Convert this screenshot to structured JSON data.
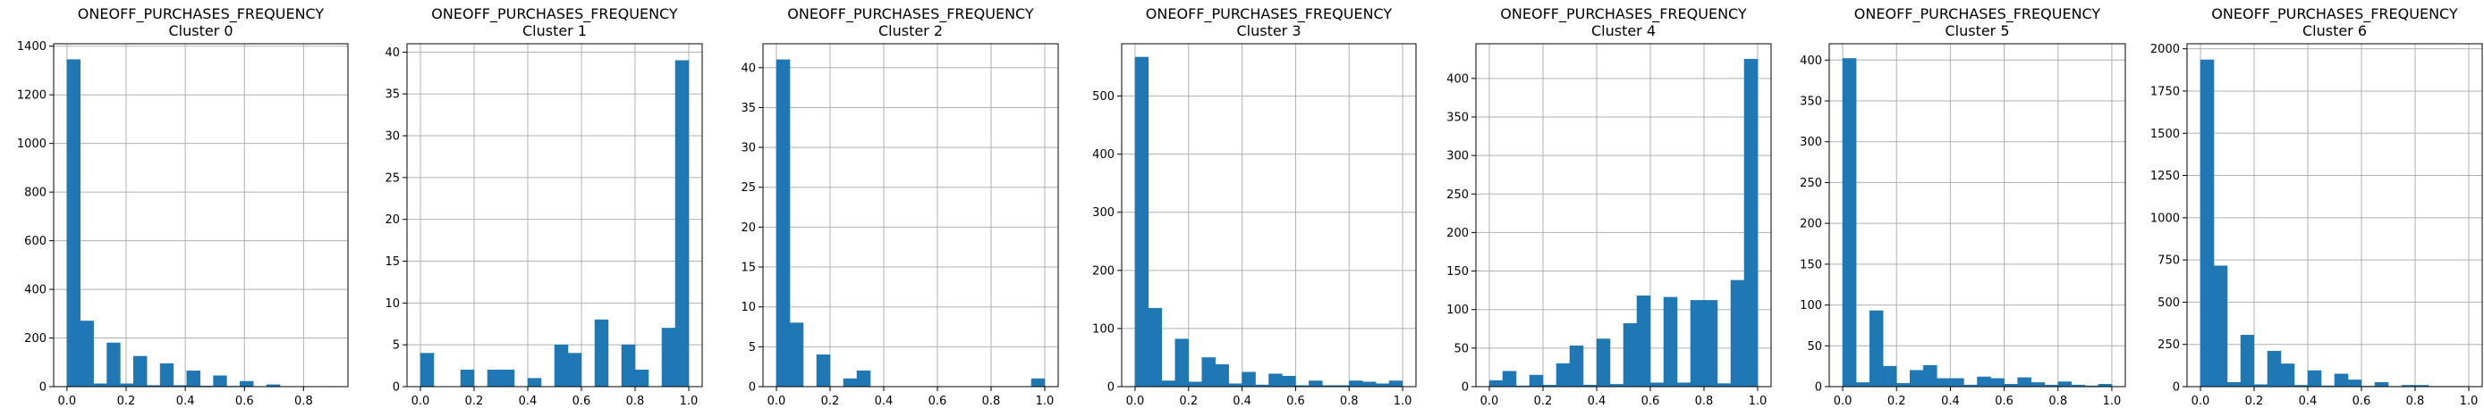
{
  "chart_data": [
    {
      "type": "bar",
      "title": "ONEOFF_PURCHASES_FREQUENCY",
      "subtitle": "Cluster 0",
      "xlim": [
        -0.045,
        0.95
      ],
      "ylim": [
        0,
        1410
      ],
      "xticks": [
        0.0,
        0.2,
        0.4,
        0.6,
        0.8
      ],
      "yticks": [
        0,
        200,
        400,
        600,
        800,
        1000,
        1200,
        1400
      ],
      "bin_width": 0.045,
      "grid": true,
      "color": "#1f77b4",
      "bins": [
        {
          "x0": 0.0,
          "x1": 0.045,
          "value": 1345
        },
        {
          "x0": 0.045,
          "x1": 0.09,
          "value": 270
        },
        {
          "x0": 0.09,
          "x1": 0.135,
          "value": 12
        },
        {
          "x0": 0.135,
          "x1": 0.18,
          "value": 180
        },
        {
          "x0": 0.18,
          "x1": 0.225,
          "value": 12
        },
        {
          "x0": 0.225,
          "x1": 0.27,
          "value": 125
        },
        {
          "x0": 0.27,
          "x1": 0.315,
          "value": 5
        },
        {
          "x0": 0.315,
          "x1": 0.36,
          "value": 95
        },
        {
          "x0": 0.36,
          "x1": 0.405,
          "value": 5
        },
        {
          "x0": 0.405,
          "x1": 0.45,
          "value": 65
        },
        {
          "x0": 0.45,
          "x1": 0.495,
          "value": 3
        },
        {
          "x0": 0.495,
          "x1": 0.54,
          "value": 45
        },
        {
          "x0": 0.54,
          "x1": 0.585,
          "value": 2
        },
        {
          "x0": 0.585,
          "x1": 0.63,
          "value": 22
        },
        {
          "x0": 0.63,
          "x1": 0.675,
          "value": 1
        },
        {
          "x0": 0.675,
          "x1": 0.72,
          "value": 8
        },
        {
          "x0": 0.72,
          "x1": 0.765,
          "value": 1
        },
        {
          "x0": 0.765,
          "x1": 0.81,
          "value": 1
        },
        {
          "x0": 0.81,
          "x1": 0.855,
          "value": 0
        },
        {
          "x0": 0.855,
          "x1": 0.9,
          "value": 1
        }
      ]
    },
    {
      "type": "bar",
      "title": "ONEOFF_PURCHASES_FREQUENCY",
      "subtitle": "Cluster 1",
      "xlim": [
        -0.05,
        1.05
      ],
      "ylim": [
        0,
        41
      ],
      "xticks": [
        0.0,
        0.2,
        0.4,
        0.6,
        0.8,
        1.0
      ],
      "yticks": [
        0,
        5,
        10,
        15,
        20,
        25,
        30,
        35,
        40
      ],
      "bin_width": 0.05,
      "grid": true,
      "color": "#1f77b4",
      "bins": [
        {
          "x0": 0.0,
          "x1": 0.05,
          "value": 4
        },
        {
          "x0": 0.05,
          "x1": 0.1,
          "value": 0
        },
        {
          "x0": 0.1,
          "x1": 0.15,
          "value": 0
        },
        {
          "x0": 0.15,
          "x1": 0.2,
          "value": 2
        },
        {
          "x0": 0.2,
          "x1": 0.25,
          "value": 0
        },
        {
          "x0": 0.25,
          "x1": 0.3,
          "value": 2
        },
        {
          "x0": 0.3,
          "x1": 0.35,
          "value": 2
        },
        {
          "x0": 0.35,
          "x1": 0.4,
          "value": 0
        },
        {
          "x0": 0.4,
          "x1": 0.45,
          "value": 1
        },
        {
          "x0": 0.45,
          "x1": 0.5,
          "value": 0
        },
        {
          "x0": 0.5,
          "x1": 0.55,
          "value": 5
        },
        {
          "x0": 0.55,
          "x1": 0.6,
          "value": 4
        },
        {
          "x0": 0.6,
          "x1": 0.65,
          "value": 0
        },
        {
          "x0": 0.65,
          "x1": 0.7,
          "value": 8
        },
        {
          "x0": 0.7,
          "x1": 0.75,
          "value": 0
        },
        {
          "x0": 0.75,
          "x1": 0.8,
          "value": 5
        },
        {
          "x0": 0.8,
          "x1": 0.85,
          "value": 2
        },
        {
          "x0": 0.85,
          "x1": 0.9,
          "value": 0
        },
        {
          "x0": 0.9,
          "x1": 0.95,
          "value": 7
        },
        {
          "x0": 0.95,
          "x1": 1.0,
          "value": 39
        }
      ]
    },
    {
      "type": "bar",
      "title": "ONEOFF_PURCHASES_FREQUENCY",
      "subtitle": "Cluster 2",
      "xlim": [
        -0.05,
        1.05
      ],
      "ylim": [
        0,
        43
      ],
      "xticks": [
        0.0,
        0.2,
        0.4,
        0.6,
        0.8,
        1.0
      ],
      "yticks": [
        0,
        5,
        10,
        15,
        20,
        25,
        30,
        35,
        40
      ],
      "bin_width": 0.05,
      "grid": true,
      "color": "#1f77b4",
      "bins": [
        {
          "x0": 0.0,
          "x1": 0.05,
          "value": 41
        },
        {
          "x0": 0.05,
          "x1": 0.1,
          "value": 8
        },
        {
          "x0": 0.1,
          "x1": 0.15,
          "value": 0
        },
        {
          "x0": 0.15,
          "x1": 0.2,
          "value": 4
        },
        {
          "x0": 0.2,
          "x1": 0.25,
          "value": 0
        },
        {
          "x0": 0.25,
          "x1": 0.3,
          "value": 1
        },
        {
          "x0": 0.3,
          "x1": 0.35,
          "value": 2
        },
        {
          "x0": 0.35,
          "x1": 0.4,
          "value": 0
        },
        {
          "x0": 0.4,
          "x1": 0.45,
          "value": 0
        },
        {
          "x0": 0.45,
          "x1": 0.5,
          "value": 0
        },
        {
          "x0": 0.5,
          "x1": 0.55,
          "value": 0
        },
        {
          "x0": 0.55,
          "x1": 0.6,
          "value": 0
        },
        {
          "x0": 0.6,
          "x1": 0.65,
          "value": 0
        },
        {
          "x0": 0.65,
          "x1": 0.7,
          "value": 0
        },
        {
          "x0": 0.7,
          "x1": 0.75,
          "value": 0
        },
        {
          "x0": 0.75,
          "x1": 0.8,
          "value": 0
        },
        {
          "x0": 0.8,
          "x1": 0.85,
          "value": 0
        },
        {
          "x0": 0.85,
          "x1": 0.9,
          "value": 0
        },
        {
          "x0": 0.9,
          "x1": 0.95,
          "value": 0
        },
        {
          "x0": 0.95,
          "x1": 1.0,
          "value": 1
        }
      ]
    },
    {
      "type": "bar",
      "title": "ONEOFF_PURCHASES_FREQUENCY",
      "subtitle": "Cluster 3",
      "xlim": [
        -0.05,
        1.05
      ],
      "ylim": [
        0,
        590
      ],
      "xticks": [
        0.0,
        0.2,
        0.4,
        0.6,
        0.8,
        1.0
      ],
      "yticks": [
        0,
        100,
        200,
        300,
        400,
        500
      ],
      "bin_width": 0.05,
      "grid": true,
      "color": "#1f77b4",
      "bins": [
        {
          "x0": 0.0,
          "x1": 0.05,
          "value": 567
        },
        {
          "x0": 0.05,
          "x1": 0.1,
          "value": 135
        },
        {
          "x0": 0.1,
          "x1": 0.15,
          "value": 10
        },
        {
          "x0": 0.15,
          "x1": 0.2,
          "value": 82
        },
        {
          "x0": 0.2,
          "x1": 0.25,
          "value": 8
        },
        {
          "x0": 0.25,
          "x1": 0.3,
          "value": 50
        },
        {
          "x0": 0.3,
          "x1": 0.35,
          "value": 38
        },
        {
          "x0": 0.35,
          "x1": 0.4,
          "value": 5
        },
        {
          "x0": 0.4,
          "x1": 0.45,
          "value": 25
        },
        {
          "x0": 0.45,
          "x1": 0.5,
          "value": 3
        },
        {
          "x0": 0.5,
          "x1": 0.55,
          "value": 22
        },
        {
          "x0": 0.55,
          "x1": 0.6,
          "value": 18
        },
        {
          "x0": 0.6,
          "x1": 0.65,
          "value": 2
        },
        {
          "x0": 0.65,
          "x1": 0.7,
          "value": 10
        },
        {
          "x0": 0.7,
          "x1": 0.75,
          "value": 2
        },
        {
          "x0": 0.75,
          "x1": 0.8,
          "value": 2
        },
        {
          "x0": 0.8,
          "x1": 0.85,
          "value": 10
        },
        {
          "x0": 0.85,
          "x1": 0.9,
          "value": 8
        },
        {
          "x0": 0.9,
          "x1": 0.95,
          "value": 5
        },
        {
          "x0": 0.95,
          "x1": 1.0,
          "value": 10
        }
      ]
    },
    {
      "type": "bar",
      "title": "ONEOFF_PURCHASES_FREQUENCY",
      "subtitle": "Cluster 4",
      "xlim": [
        -0.05,
        1.05
      ],
      "ylim": [
        0,
        445
      ],
      "xticks": [
        0.0,
        0.2,
        0.4,
        0.6,
        0.8,
        1.0
      ],
      "yticks": [
        0,
        50,
        100,
        150,
        200,
        250,
        300,
        350,
        400
      ],
      "bin_width": 0.05,
      "grid": true,
      "color": "#1f77b4",
      "bins": [
        {
          "x0": 0.0,
          "x1": 0.05,
          "value": 8
        },
        {
          "x0": 0.05,
          "x1": 0.1,
          "value": 20
        },
        {
          "x0": 0.1,
          "x1": 0.15,
          "value": 1
        },
        {
          "x0": 0.15,
          "x1": 0.2,
          "value": 15
        },
        {
          "x0": 0.2,
          "x1": 0.25,
          "value": 2
        },
        {
          "x0": 0.25,
          "x1": 0.3,
          "value": 30
        },
        {
          "x0": 0.3,
          "x1": 0.35,
          "value": 53
        },
        {
          "x0": 0.35,
          "x1": 0.4,
          "value": 2
        },
        {
          "x0": 0.4,
          "x1": 0.45,
          "value": 62
        },
        {
          "x0": 0.45,
          "x1": 0.5,
          "value": 3
        },
        {
          "x0": 0.5,
          "x1": 0.55,
          "value": 82
        },
        {
          "x0": 0.55,
          "x1": 0.6,
          "value": 118
        },
        {
          "x0": 0.6,
          "x1": 0.65,
          "value": 5
        },
        {
          "x0": 0.65,
          "x1": 0.7,
          "value": 116
        },
        {
          "x0": 0.7,
          "x1": 0.75,
          "value": 5
        },
        {
          "x0": 0.75,
          "x1": 0.8,
          "value": 112
        },
        {
          "x0": 0.8,
          "x1": 0.85,
          "value": 112
        },
        {
          "x0": 0.85,
          "x1": 0.9,
          "value": 4
        },
        {
          "x0": 0.9,
          "x1": 0.95,
          "value": 138
        },
        {
          "x0": 0.95,
          "x1": 1.0,
          "value": 425
        }
      ]
    },
    {
      "type": "bar",
      "title": "ONEOFF_PURCHASES_FREQUENCY",
      "subtitle": "Cluster 5",
      "xlim": [
        -0.05,
        1.05
      ],
      "ylim": [
        0,
        420
      ],
      "xticks": [
        0.0,
        0.2,
        0.4,
        0.6,
        0.8,
        1.0
      ],
      "yticks": [
        0,
        50,
        100,
        150,
        200,
        250,
        300,
        350,
        400
      ],
      "bin_width": 0.05,
      "grid": true,
      "color": "#1f77b4",
      "bins": [
        {
          "x0": 0.0,
          "x1": 0.05,
          "value": 402
        },
        {
          "x0": 0.05,
          "x1": 0.1,
          "value": 5
        },
        {
          "x0": 0.1,
          "x1": 0.15,
          "value": 93
        },
        {
          "x0": 0.15,
          "x1": 0.2,
          "value": 25
        },
        {
          "x0": 0.2,
          "x1": 0.25,
          "value": 4
        },
        {
          "x0": 0.25,
          "x1": 0.3,
          "value": 20
        },
        {
          "x0": 0.3,
          "x1": 0.35,
          "value": 26
        },
        {
          "x0": 0.35,
          "x1": 0.4,
          "value": 10
        },
        {
          "x0": 0.4,
          "x1": 0.45,
          "value": 10
        },
        {
          "x0": 0.45,
          "x1": 0.5,
          "value": 2
        },
        {
          "x0": 0.5,
          "x1": 0.55,
          "value": 12
        },
        {
          "x0": 0.55,
          "x1": 0.6,
          "value": 10
        },
        {
          "x0": 0.6,
          "x1": 0.65,
          "value": 3
        },
        {
          "x0": 0.65,
          "x1": 0.7,
          "value": 11
        },
        {
          "x0": 0.7,
          "x1": 0.75,
          "value": 5
        },
        {
          "x0": 0.75,
          "x1": 0.8,
          "value": 2
        },
        {
          "x0": 0.8,
          "x1": 0.85,
          "value": 6
        },
        {
          "x0": 0.85,
          "x1": 0.9,
          "value": 2
        },
        {
          "x0": 0.9,
          "x1": 0.95,
          "value": 1
        },
        {
          "x0": 0.95,
          "x1": 1.0,
          "value": 3
        }
      ]
    },
    {
      "type": "bar",
      "title": "ONEOFF_PURCHASES_FREQUENCY",
      "subtitle": "Cluster 6",
      "xlim": [
        -0.05,
        1.05
      ],
      "ylim": [
        0,
        2030
      ],
      "xticks": [
        0.0,
        0.2,
        0.4,
        0.6,
        0.8,
        1.0
      ],
      "yticks": [
        0,
        250,
        500,
        750,
        1000,
        1250,
        1500,
        1750,
        2000
      ],
      "bin_width": 0.05,
      "grid": true,
      "color": "#1f77b4",
      "bins": [
        {
          "x0": 0.0,
          "x1": 0.05,
          "value": 1935
        },
        {
          "x0": 0.05,
          "x1": 0.1,
          "value": 715
        },
        {
          "x0": 0.1,
          "x1": 0.15,
          "value": 25
        },
        {
          "x0": 0.15,
          "x1": 0.2,
          "value": 305
        },
        {
          "x0": 0.2,
          "x1": 0.25,
          "value": 12
        },
        {
          "x0": 0.25,
          "x1": 0.3,
          "value": 210
        },
        {
          "x0": 0.3,
          "x1": 0.35,
          "value": 135
        },
        {
          "x0": 0.35,
          "x1": 0.4,
          "value": 8
        },
        {
          "x0": 0.4,
          "x1": 0.45,
          "value": 95
        },
        {
          "x0": 0.45,
          "x1": 0.5,
          "value": 5
        },
        {
          "x0": 0.5,
          "x1": 0.55,
          "value": 75
        },
        {
          "x0": 0.55,
          "x1": 0.6,
          "value": 40
        },
        {
          "x0": 0.6,
          "x1": 0.65,
          "value": 3
        },
        {
          "x0": 0.65,
          "x1": 0.7,
          "value": 25
        },
        {
          "x0": 0.7,
          "x1": 0.75,
          "value": 2
        },
        {
          "x0": 0.75,
          "x1": 0.8,
          "value": 8
        },
        {
          "x0": 0.8,
          "x1": 0.85,
          "value": 8
        },
        {
          "x0": 0.85,
          "x1": 0.9,
          "value": 2
        },
        {
          "x0": 0.9,
          "x1": 0.95,
          "value": 2
        },
        {
          "x0": 0.95,
          "x1": 1.0,
          "value": 2
        }
      ]
    }
  ]
}
